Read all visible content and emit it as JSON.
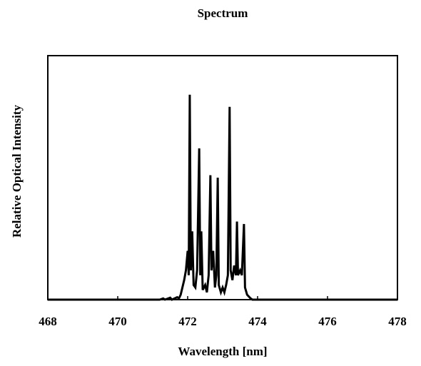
{
  "chart_data": {
    "type": "line",
    "title": "Spectrum",
    "x_label": "Wavelength [nm]",
    "y_label": "Relative Optical Intensity",
    "x": [
      468,
      471.2,
      471.3,
      471.35,
      471.5,
      471.55,
      471.7,
      471.75,
      471.8,
      471.85,
      471.9,
      471.95,
      472.0,
      472.03,
      472.06,
      472.09,
      472.13,
      472.17,
      472.22,
      472.27,
      472.33,
      472.36,
      472.39,
      472.43,
      472.5,
      472.55,
      472.6,
      472.65,
      472.68,
      472.73,
      472.78,
      472.82,
      472.86,
      472.89,
      472.95,
      473.0,
      473.05,
      473.1,
      473.15,
      473.2,
      473.23,
      473.28,
      473.33,
      473.38,
      473.41,
      473.44,
      473.5,
      473.55,
      473.61,
      473.64,
      473.7,
      473.8,
      473.85,
      478
    ],
    "values": [
      0,
      0,
      0.005,
      0,
      0.008,
      0,
      0.01,
      0.005,
      0.02,
      0.05,
      0.08,
      0.12,
      0.2,
      0.1,
      0.84,
      0.12,
      0.28,
      0.06,
      0.05,
      0.12,
      0.62,
      0.1,
      0.28,
      0.04,
      0.06,
      0.03,
      0.1,
      0.51,
      0.12,
      0.2,
      0.05,
      0.1,
      0.5,
      0.06,
      0.03,
      0.05,
      0.03,
      0.06,
      0.1,
      0.79,
      0.12,
      0.08,
      0.14,
      0.1,
      0.32,
      0.1,
      0.12,
      0.1,
      0.31,
      0.05,
      0.02,
      0.005,
      0,
      0
    ],
    "color": "#000000",
    "xlim": [
      468,
      478
    ],
    "xticks": [
      468,
      470,
      472,
      474,
      476,
      478
    ],
    "ylim": [
      0,
      1
    ]
  }
}
